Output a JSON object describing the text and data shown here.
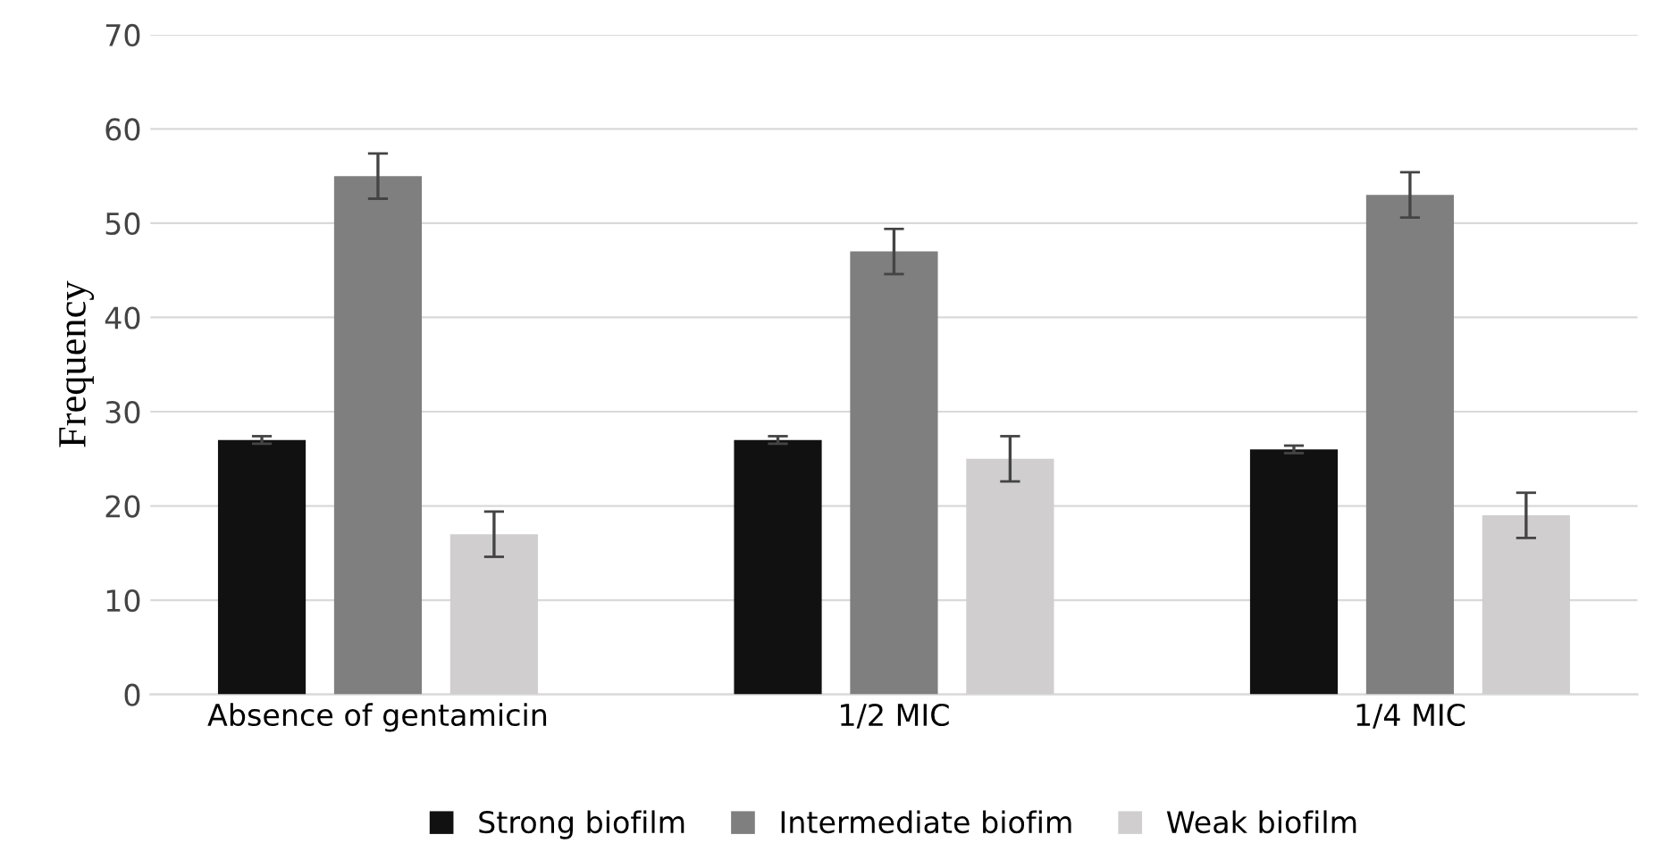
{
  "chart_data": {
    "type": "bar",
    "ylabel": "Frequency",
    "categories": [
      "Absence of gentamicin",
      "1/2 MIC",
      "1/4 MIC"
    ],
    "series": [
      {
        "name": "Strong biofilm",
        "color": "#111111",
        "values": [
          27,
          27,
          26
        ],
        "errors": [
          0.4,
          0.4,
          0.4
        ]
      },
      {
        "name": "Intermediate biofim",
        "color": "#7f7f7f",
        "values": [
          55,
          47,
          53
        ],
        "errors": [
          2.4,
          2.4,
          2.4
        ]
      },
      {
        "name": "Weak biofilm",
        "color": "#d0cecf",
        "values": [
          17,
          25,
          19
        ],
        "errors": [
          2.4,
          2.4,
          2.4
        ]
      }
    ],
    "ylim": [
      0,
      70
    ],
    "yticks": [
      0,
      10,
      20,
      30,
      40,
      50,
      60,
      70
    ],
    "grid": "y",
    "legend": "bottom"
  }
}
